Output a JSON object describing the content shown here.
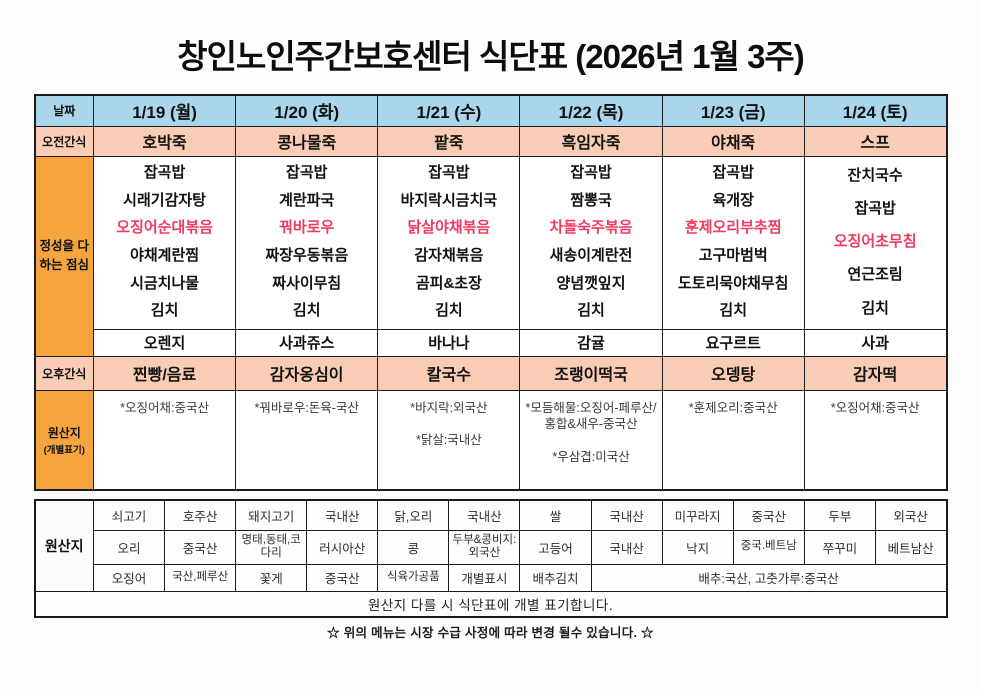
{
  "title": "창인노인주간보호센터 식단표 (2026년 1월 3주)",
  "colors": {
    "header_blue": "#a9d6ed",
    "snack_peach": "#f9cdb5",
    "label_orange": "#f6a43d",
    "special_menu_red": "#ee3b5f"
  },
  "header": {
    "date_label": "날짜",
    "days": [
      "1/19 (월)",
      "1/20 (화)",
      "1/21 (수)",
      "1/22 (목)",
      "1/23 (금)",
      "1/24 (토)"
    ]
  },
  "morning_snack": {
    "label": "오전간식",
    "items": [
      "호박죽",
      "콩나물죽",
      "팥죽",
      "흑임자죽",
      "야채죽",
      "스프"
    ]
  },
  "lunch": {
    "label": "정성을 다하는 점심",
    "special_index": 2,
    "days": [
      {
        "items": [
          "잡곡밥",
          "시래기감자탕",
          "오징어순대볶음",
          "야채계란찜",
          "시금치나물",
          "김치"
        ],
        "fruit": "오렌지"
      },
      {
        "items": [
          "잡곡밥",
          "계란파국",
          "꿔바로우",
          "짜장우동볶음",
          "짜사이무침",
          "김치"
        ],
        "fruit": "사과쥬스"
      },
      {
        "items": [
          "잡곡밥",
          "바지락시금치국",
          "닭살야채볶음",
          "감자채볶음",
          "곰피&초장",
          "김치"
        ],
        "fruit": "바나나"
      },
      {
        "items": [
          "잡곡밥",
          "짬뽕국",
          "차돌숙주볶음",
          "새송이계란전",
          "양념깻잎지",
          "김치"
        ],
        "fruit": "감귤"
      },
      {
        "items": [
          "잡곡밥",
          "육개장",
          "훈제오리부추찜",
          "고구마범벅",
          "도토리묵야채무침",
          "김치"
        ],
        "fruit": "요구르트"
      },
      {
        "items": [
          "잔치국수",
          "잡곡밥",
          "오징어초무침",
          "연근조림",
          "김치"
        ],
        "fruit": "사과"
      }
    ]
  },
  "afternoon_snack": {
    "label": "오후간식",
    "items": [
      "찐빵/음료",
      "감자옹심이",
      "칼국수",
      "조랭이떡국",
      "오뎅탕",
      "감자떡"
    ]
  },
  "origin_individual": {
    "label": "원산지",
    "sublabel": "(개별표기)",
    "days": [
      [
        "*오징어채:중국산"
      ],
      [
        "*꿔바로우:돈육-국산"
      ],
      [
        "*바지락:외국산",
        "*닭살:국내산"
      ],
      [
        "*모듬해물:오징어-페루산/홍합&새우-중국산",
        "*우삼겹:미국산"
      ],
      [
        "*훈제오리:중국산"
      ],
      [
        "*오징어채:중국산"
      ]
    ]
  },
  "origin_table": {
    "label": "원산지",
    "rows": [
      [
        "쇠고기",
        "호주산",
        "돼지고기",
        "국내산",
        "닭,오리",
        "국내산",
        "쌀",
        "국내산",
        "미꾸라지",
        "중국산",
        "두부",
        "외국산"
      ],
      [
        "오리",
        "중국산",
        "명태,동태,코다리",
        "러시아산",
        "콩",
        "두부&콩비지:외국산",
        "고등어",
        "국내산",
        "낙지",
        "중국.베트남",
        "쭈꾸미",
        "베트남산"
      ],
      [
        "오징어",
        "국산,페루산",
        "꽃게",
        "중국산",
        "식육가공품",
        "개별표시",
        "배추김치"
      ]
    ],
    "row3_merged": "배추:국산, 고춧가루:중국산"
  },
  "footer": {
    "note1": "원산지 다를 시 식단표에 개별 표기합니다.",
    "note2": "☆ 위의 메뉴는 시장 수급 사정에 따라 변경 될수 있습니다. ☆"
  }
}
